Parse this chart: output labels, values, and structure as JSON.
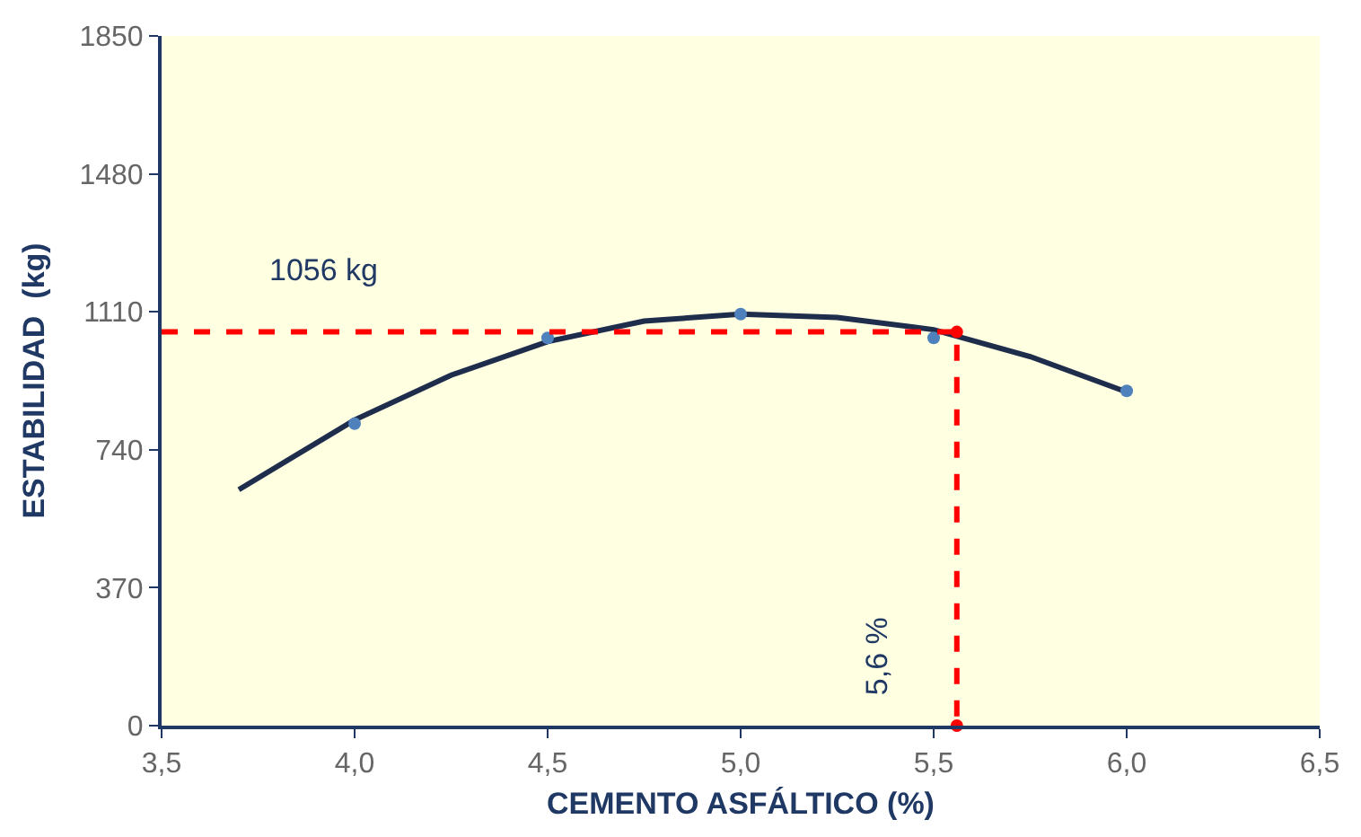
{
  "chart_data": {
    "type": "scatter",
    "xlabel": "CEMENTO ASFÁLTICO (%)",
    "ylabel": "ESTABILIDAD  (kg)",
    "xlim": [
      3.5,
      6.5
    ],
    "xticks": [
      {
        "value": 3.5,
        "label": "3,5"
      },
      {
        "value": 4.0,
        "label": "4,0"
      },
      {
        "value": 4.5,
        "label": "4,5"
      },
      {
        "value": 5.0,
        "label": "5,0"
      },
      {
        "value": 5.5,
        "label": "5,5"
      },
      {
        "value": 6.0,
        "label": "6,0"
      },
      {
        "value": 6.5,
        "label": "6,5"
      }
    ],
    "ylim": [
      0,
      1850
    ],
    "yticks": [
      0,
      370,
      740,
      1110,
      1480,
      1850
    ],
    "grid": false,
    "legend": false,
    "series": [
      {
        "type": "line",
        "marker": "none",
        "line_style": "solid",
        "color": "#1f2d4d",
        "x": [
          3.7,
          4.0,
          4.25,
          4.5,
          4.75,
          5.0,
          5.25,
          5.5,
          5.75,
          6.0
        ],
        "values": [
          633,
          820,
          940,
          1030,
          1085,
          1104,
          1095,
          1062,
          990,
          895
        ]
      },
      {
        "marker": "circle",
        "color": "#4f81bd",
        "x": [
          4.0,
          4.5,
          5.0,
          5.5,
          6.0
        ],
        "values": [
          810,
          1040,
          1104,
          1040,
          898
        ]
      },
      {
        "type": "line",
        "marker": "none",
        "line_style": "dashed",
        "color": "#ff0000",
        "x": [
          3.5,
          5.56,
          5.56
        ],
        "values": [
          1056,
          1056,
          0
        ]
      },
      {
        "marker": "circle",
        "color": "#ff0000",
        "x": [
          5.56,
          5.56
        ],
        "values": [
          1056,
          0
        ]
      }
    ],
    "annotations": [
      "1056 kg",
      "5,6 %"
    ]
  }
}
